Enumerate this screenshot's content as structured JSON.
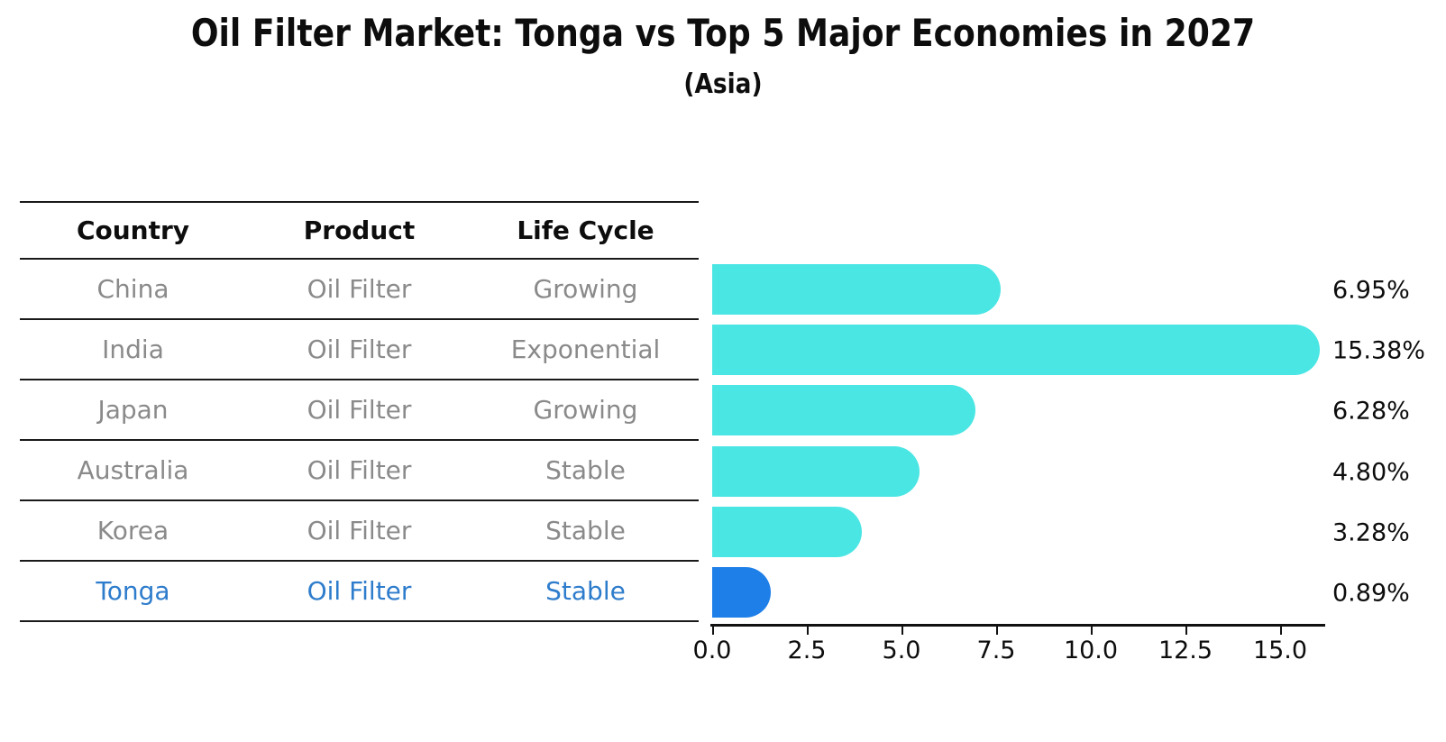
{
  "title": "Oil Filter Market: Tonga vs Top 5 Major Economies in 2027",
  "subtitle": "(Asia)",
  "table": {
    "headers": [
      "Country",
      "Product",
      "Life Cycle"
    ],
    "rows": [
      {
        "country": "China",
        "product": "Oil Filter",
        "life_cycle": "Growing"
      },
      {
        "country": "India",
        "product": "Oil Filter",
        "life_cycle": "Exponential"
      },
      {
        "country": "Japan",
        "product": "Oil Filter",
        "life_cycle": "Growing"
      },
      {
        "country": "Australia",
        "product": "Oil Filter",
        "life_cycle": "Stable"
      },
      {
        "country": "Korea",
        "product": "Oil Filter",
        "life_cycle": "Stable"
      },
      {
        "country": "Tonga",
        "product": "Oil Filter",
        "life_cycle": "Stable"
      }
    ],
    "highlighted_row": "Tonga"
  },
  "chart_data": {
    "type": "bar",
    "orientation": "horizontal",
    "title": "Oil Filter Market: Tonga vs Top 5 Major Economies in 2027",
    "subtitle": "(Asia)",
    "categories": [
      "China",
      "India",
      "Japan",
      "Australia",
      "Korea",
      "Tonga"
    ],
    "values": [
      6.95,
      15.38,
      6.28,
      4.8,
      3.28,
      0.89
    ],
    "value_labels": [
      "6.95%",
      "15.38%",
      "6.28%",
      "4.80%",
      "3.28%",
      "0.89%"
    ],
    "x_ticks": [
      "0.0",
      "2.5",
      "5.0",
      "7.5",
      "10.0",
      "12.5",
      "15.0"
    ],
    "xlim": [
      0,
      16.2
    ],
    "xlabel": "",
    "ylabel": "",
    "grid": false,
    "legend": "none",
    "bar_color": "#4AE6E4",
    "highlight_color": "#1E7FE8",
    "highlight_index": 5
  },
  "colors": {
    "bar_cyan": "#4AE6E4",
    "bar_blue": "#1E7FE8",
    "highlight_text": "#2E7CCC",
    "cell_text": "#8A8A8A",
    "heading_text": "#0D0D0D",
    "line": "#1A1A1A",
    "background": "#FFFFFF"
  }
}
